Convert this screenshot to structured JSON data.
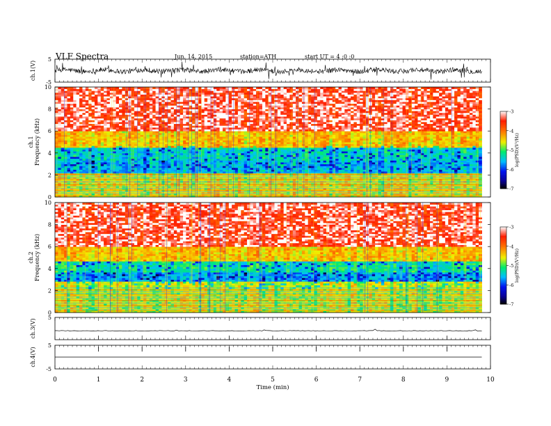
{
  "header": {
    "title": "VLF Spectra",
    "date": "Jun. 14, 2015",
    "station": "station=ATH",
    "start": "start  UT =  4 :0 :0"
  },
  "chart_data": [
    {
      "type": "line",
      "name": "ch1-waveform",
      "ylabel": "ch.1(V)",
      "ylim": [
        -5,
        5
      ],
      "yticks": [
        "5",
        "-5"
      ],
      "xlim": [
        0,
        10
      ],
      "description_values": {
        "baseline_v": 0,
        "noise_amplitude_v": 2
      }
    },
    {
      "type": "heatmap",
      "name": "ch1-spectrogram",
      "ylabel": "ch.1\nFrequency (kHz)",
      "ylabel_lines": [
        "ch.1",
        "Frequency (kHz)"
      ],
      "ylim": [
        0,
        10
      ],
      "yticks": [
        "0",
        "2",
        "4",
        "6",
        "8",
        "10"
      ],
      "xlim": [
        0,
        9.8
      ],
      "colorbar": {
        "label": "log(PSD)(V²/Hz)",
        "min": -7,
        "max": -3,
        "ticks": [
          "-3",
          "-4",
          "-5",
          "-6",
          "-7"
        ]
      },
      "bands_khz": [
        {
          "from": 0,
          "to": 2.2,
          "level": -4.6
        },
        {
          "from": 2.2,
          "to": 3.3,
          "level": -5.6
        },
        {
          "from": 3.3,
          "to": 4.5,
          "level": -5.4
        },
        {
          "from": 4.5,
          "to": 6.0,
          "level": -4.4
        },
        {
          "from": 6.0,
          "to": 10,
          "level": -3.5
        }
      ]
    },
    {
      "type": "heatmap",
      "name": "ch2-spectrogram",
      "ylabel_lines": [
        "ch.2",
        "Frequency (kHz)"
      ],
      "ylim": [
        0,
        10
      ],
      "yticks": [
        "0",
        "2",
        "4",
        "6",
        "8",
        "10"
      ],
      "xlim": [
        0,
        9.8
      ],
      "colorbar": {
        "label": "log(PSD)(V²/Hz)",
        "min": -7,
        "max": -3,
        "ticks": [
          "-3",
          "-4",
          "-5",
          "-6",
          "-7"
        ]
      },
      "bands_khz": [
        {
          "from": 0,
          "to": 2.8,
          "level": -4.7
        },
        {
          "from": 2.8,
          "to": 3.6,
          "level": -5.7
        },
        {
          "from": 3.6,
          "to": 4.6,
          "level": -5.3
        },
        {
          "from": 4.6,
          "to": 6.0,
          "level": -4.4
        },
        {
          "from": 6.0,
          "to": 10,
          "level": -3.5
        }
      ]
    },
    {
      "type": "line",
      "name": "ch3-waveform",
      "ylabel": "ch.3(V)",
      "ylim": [
        -5,
        5
      ],
      "yticks": [
        "5"
      ],
      "xlim": [
        0,
        9.8
      ],
      "description_values": {
        "baseline_v": -1
      }
    },
    {
      "type": "line",
      "name": "ch4-waveform",
      "ylabel": "ch.4(V)",
      "ylim": [
        -5,
        5
      ],
      "yticks": [
        "5",
        "-5"
      ],
      "xlim": [
        0,
        9.8
      ],
      "description_values": {
        "baseline_v": 0
      }
    }
  ],
  "xaxis": {
    "label": "Time (min)",
    "ticks": [
      "0",
      "1",
      "2",
      "3",
      "4",
      "5",
      "6",
      "7",
      "8",
      "9",
      "10"
    ],
    "min": 0,
    "max": 10
  },
  "colors": {
    "red": "#ff2000",
    "yellow": "#ffee00",
    "green": "#00ee60",
    "cyan": "#00c8ff",
    "blue": "#0010e0",
    "black": "#000000"
  }
}
